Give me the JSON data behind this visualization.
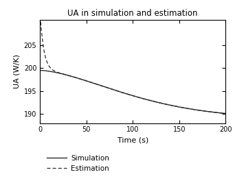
{
  "title": "UA in simulation and estimation",
  "xlabel": "Time (s)",
  "ylabel": "UA (W/K)",
  "xlim": [
    0,
    200
  ],
  "ylim": [
    188.0,
    210.5
  ],
  "yticks": [
    190,
    195,
    200,
    205
  ],
  "xticks": [
    0,
    50,
    100,
    150,
    200
  ],
  "sim_color": "#2a2a2a",
  "est_color": "#2a2a2a",
  "legend_labels": [
    "Simulation",
    "Estimation"
  ],
  "figsize": [
    3.42,
    2.64
  ],
  "dpi": 100,
  "sim_start": 199.5,
  "sim_end": 189.0,
  "sim_tau": 120.0,
  "est_peak": 212.5,
  "est_tau": 4.0
}
